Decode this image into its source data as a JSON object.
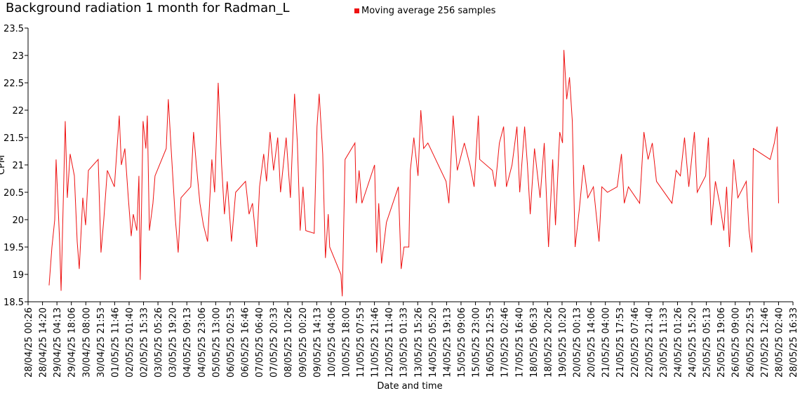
{
  "chart_data": {
    "type": "line",
    "title": "Background radiation 1 month for Radman_L",
    "xlabel": "Date and time",
    "ylabel": "CPM",
    "series": [
      {
        "name": "Moving average 256 samples",
        "color": "#ee1111",
        "x": [
          "28/04/25 20:40",
          "28/04/25 23:24",
          "29/04/25 02:06",
          "29/04/25 03:24",
          "29/04/25 06:48",
          "29/04/25 08:12",
          "29/04/25 12:12",
          "29/04/25 14:12",
          "29/04/25 16:54",
          "29/04/25 21:00",
          "29/04/25 23:42",
          "30/04/25 01:42",
          "30/04/25 05:06",
          "30/04/25 07:48",
          "30/04/25 10:30",
          "30/04/25 19:54",
          "30/04/25 22:36",
          "01/05/25 01:18",
          "01/05/25 04:42",
          "01/05/25 11:30",
          "01/05/25 16:12",
          "01/05/25 18:12",
          "01/05/25 21:36",
          "02/05/25 00:54",
          "02/05/25 03:42",
          "02/05/25 05:42",
          "02/05/25 09:06",
          "02/05/25 11:06",
          "02/05/25 12:24",
          "02/05/25 15:06",
          "02/05/25 17:48",
          "02/05/25 19:12",
          "02/05/25 21:12",
          "03/05/25 00:36",
          "03/05/25 02:36",
          "03/05/25 13:24",
          "03/05/25 15:24",
          "03/05/25 18:06",
          "03/05/25 22:12",
          "04/05/25 00:54",
          "04/05/25 03:36",
          "04/05/25 13:00",
          "04/05/25 15:42",
          "04/05/25 18:24",
          "04/05/25 21:48",
          "05/05/25 01:12",
          "05/05/25 05:12",
          "05/05/25 09:18",
          "05/05/25 12:00",
          "05/05/25 15:24",
          "05/05/25 18:42",
          "05/05/25 21:24",
          "06/05/25 00:06",
          "06/05/25 04:12",
          "06/05/25 08:12",
          "06/05/25 17:42",
          "06/05/25 21:06",
          "07/05/25 00:24",
          "07/05/25 04:30",
          "07/05/25 07:12",
          "07/05/25 11:12",
          "07/05/25 13:54",
          "07/05/25 17:18",
          "07/05/25 20:42",
          "08/05/25 00:42",
          "08/05/25 03:24",
          "08/05/25 08:48",
          "08/05/25 12:54",
          "08/05/25 16:54",
          "08/05/25 19:36",
          "08/05/25 22:18",
          "09/05/25 01:00",
          "09/05/25 03:42",
          "09/05/25 11:48",
          "09/05/25 14:30",
          "09/05/25 16:36",
          "09/05/25 20:00",
          "09/05/25 22:36",
          "10/05/25 01:18",
          "10/05/25 02:42",
          "10/05/25 13:30",
          "10/05/25 14:48",
          "10/05/25 17:30",
          "11/05/25 03:00",
          "11/05/25 04:18",
          "11/05/25 07:00",
          "11/05/25 09:42",
          "11/05/25 21:54",
          "11/05/25 23:54",
          "12/05/25 01:54",
          "12/05/25 04:36",
          "12/05/25 09:18",
          "12/05/25 20:48",
          "12/05/25 23:30",
          "13/05/25 02:12",
          "13/05/25 06:54",
          "13/05/25 08:18",
          "13/05/25 11:42",
          "13/05/25 15:42",
          "13/05/25 18:24",
          "13/05/25 21:06",
          "14/05/25 01:12",
          "14/05/25 18:42",
          "14/05/25 21:24",
          "15/05/25 01:30",
          "15/05/25 05:30",
          "15/05/25 12:18",
          "15/05/25 17:42",
          "15/05/25 21:42",
          "16/05/25 01:48",
          "16/05/25 03:06",
          "16/05/25 15:18",
          "16/05/25 18:00",
          "16/05/25 22:00",
          "17/05/25 02:06",
          "17/05/25 04:48",
          "17/05/25 10:12",
          "17/05/25 14:54",
          "17/05/25 17:36",
          "17/05/25 22:18",
          "18/05/25 01:00",
          "18/05/25 03:42",
          "18/05/25 07:48",
          "18/05/25 13:12",
          "18/05/25 17:12",
          "18/05/25 21:18",
          "19/05/25 01:18",
          "19/05/25 04:00",
          "19/05/25 08:06",
          "19/05/25 10:48",
          "19/05/25 12:06",
          "19/05/25 14:48",
          "19/05/25 17:30",
          "19/05/25 20:12",
          "19/05/25 22:54",
          "20/05/25 03:00",
          "20/05/25 07:00",
          "20/05/25 11:06",
          "20/05/25 16:30",
          "20/05/25 21:54",
          "21/05/25 00:36",
          "21/05/25 06:00",
          "21/05/25 15:24",
          "21/05/25 19:30",
          "21/05/25 22:12",
          "22/05/25 02:12",
          "22/05/25 13:00",
          "22/05/25 17:06",
          "22/05/25 21:06",
          "23/05/25 01:12",
          "23/05/25 05:12",
          "23/05/25 20:06",
          "24/05/25 00:06",
          "24/05/25 04:12",
          "24/05/25 08:12",
          "24/05/25 12:18",
          "24/05/25 17:42",
          "24/05/25 20:24",
          "25/05/25 04:30",
          "25/05/25 07:12",
          "25/05/25 09:54",
          "25/05/25 13:54",
          "25/05/25 18:00",
          "25/05/25 22:00",
          "26/05/25 00:42",
          "26/05/25 03:24",
          "26/05/25 07:30",
          "26/05/25 11:30",
          "26/05/25 19:36",
          "26/05/25 22:18",
          "27/05/25 01:00",
          "27/05/25 02:24",
          "27/05/25 18:36",
          "27/05/25 22:36",
          "28/05/25 01:18",
          "28/05/25 02:42"
        ],
        "values": [
          18.8,
          19.5,
          20.0,
          21.1,
          19.6,
          18.7,
          21.8,
          20.4,
          21.2,
          20.8,
          19.6,
          19.1,
          20.4,
          19.9,
          20.9,
          21.1,
          19.4,
          20.0,
          20.9,
          20.6,
          21.9,
          21.0,
          21.3,
          20.4,
          19.7,
          20.1,
          19.8,
          20.8,
          18.9,
          21.8,
          21.3,
          21.9,
          19.8,
          20.3,
          20.8,
          21.3,
          22.2,
          21.3,
          20.0,
          19.4,
          20.4,
          20.6,
          21.6,
          21.0,
          20.3,
          19.9,
          19.6,
          21.1,
          20.5,
          22.5,
          21.0,
          20.1,
          20.7,
          19.6,
          20.5,
          20.7,
          20.1,
          20.3,
          19.5,
          20.6,
          21.2,
          20.7,
          21.6,
          20.9,
          21.5,
          20.5,
          21.5,
          20.4,
          22.3,
          21.4,
          19.8,
          20.6,
          19.8,
          19.75,
          21.7,
          22.3,
          21.2,
          19.3,
          20.1,
          19.5,
          19.0,
          18.6,
          21.1,
          21.4,
          20.3,
          20.9,
          20.3,
          21.0,
          19.4,
          20.3,
          19.2,
          19.95,
          20.6,
          19.1,
          19.5,
          19.5,
          20.9,
          21.5,
          20.8,
          22.0,
          21.3,
          21.4,
          20.7,
          20.3,
          21.9,
          20.9,
          21.4,
          21.0,
          20.6,
          21.9,
          21.1,
          20.9,
          20.6,
          21.4,
          21.7,
          20.6,
          21.0,
          21.7,
          20.5,
          21.7,
          21.0,
          20.1,
          21.3,
          20.4,
          21.4,
          19.5,
          21.1,
          19.9,
          21.6,
          21.4,
          23.1,
          22.2,
          22.6,
          21.8,
          19.5,
          20.2,
          21.0,
          20.4,
          20.6,
          19.6,
          20.6,
          20.5,
          20.6,
          21.2,
          20.3,
          20.6,
          20.3,
          21.6,
          21.1,
          21.4,
          20.7,
          20.3,
          20.9,
          20.8,
          21.5,
          20.6,
          21.6,
          20.5,
          20.8,
          21.5,
          19.9,
          20.7,
          20.3,
          19.8,
          20.6,
          19.5,
          21.1,
          20.4,
          20.7,
          19.8,
          19.4,
          21.3,
          21.1,
          21.4,
          21.7,
          20.3
        ]
      }
    ],
    "xlim": [
      "28/04/25 00:26",
      "28/05/25 16:33"
    ],
    "xticks": [
      "28/04/25 00:26",
      "28/04/25 14:20",
      "29/04/25 04:13",
      "29/04/25 18:06",
      "30/04/25 08:00",
      "30/04/25 21:53",
      "01/05/25 11:46",
      "02/05/25 01:40",
      "02/05/25 15:33",
      "03/05/25 05:26",
      "03/05/25 19:20",
      "04/05/25 09:13",
      "04/05/25 23:06",
      "05/05/25 13:00",
      "06/05/25 02:53",
      "06/05/25 16:46",
      "07/05/25 06:40",
      "07/05/25 20:33",
      "08/05/25 10:26",
      "09/05/25 00:20",
      "09/05/25 14:13",
      "10/05/25 04:06",
      "10/05/25 18:00",
      "11/05/25 07:53",
      "11/05/25 21:46",
      "12/05/25 11:40",
      "13/05/25 01:33",
      "13/05/25 15:26",
      "14/05/25 05:20",
      "14/05/25 19:13",
      "15/05/25 09:06",
      "15/05/25 23:00",
      "16/05/25 12:53",
      "17/05/25 02:46",
      "17/05/25 16:40",
      "18/05/25 06:33",
      "18/05/25 20:26",
      "19/05/25 10:20",
      "20/05/25 00:13",
      "20/05/25 14:06",
      "21/05/25 04:00",
      "21/05/25 17:53",
      "22/05/25 07:46",
      "22/05/25 21:40",
      "23/05/25 11:33",
      "24/05/25 01:26",
      "24/05/25 15:20",
      "25/05/25 05:13",
      "25/05/25 19:06",
      "26/05/25 09:00",
      "26/05/25 22:53",
      "27/05/25 12:46",
      "28/05/25 02:40",
      "28/05/25 16:33"
    ],
    "ylim": [
      18.5,
      23.5
    ],
    "yticks": [
      18.5,
      19,
      19.5,
      20,
      20.5,
      21,
      21.5,
      22,
      22.5,
      23,
      23.5
    ],
    "legend": "top"
  }
}
